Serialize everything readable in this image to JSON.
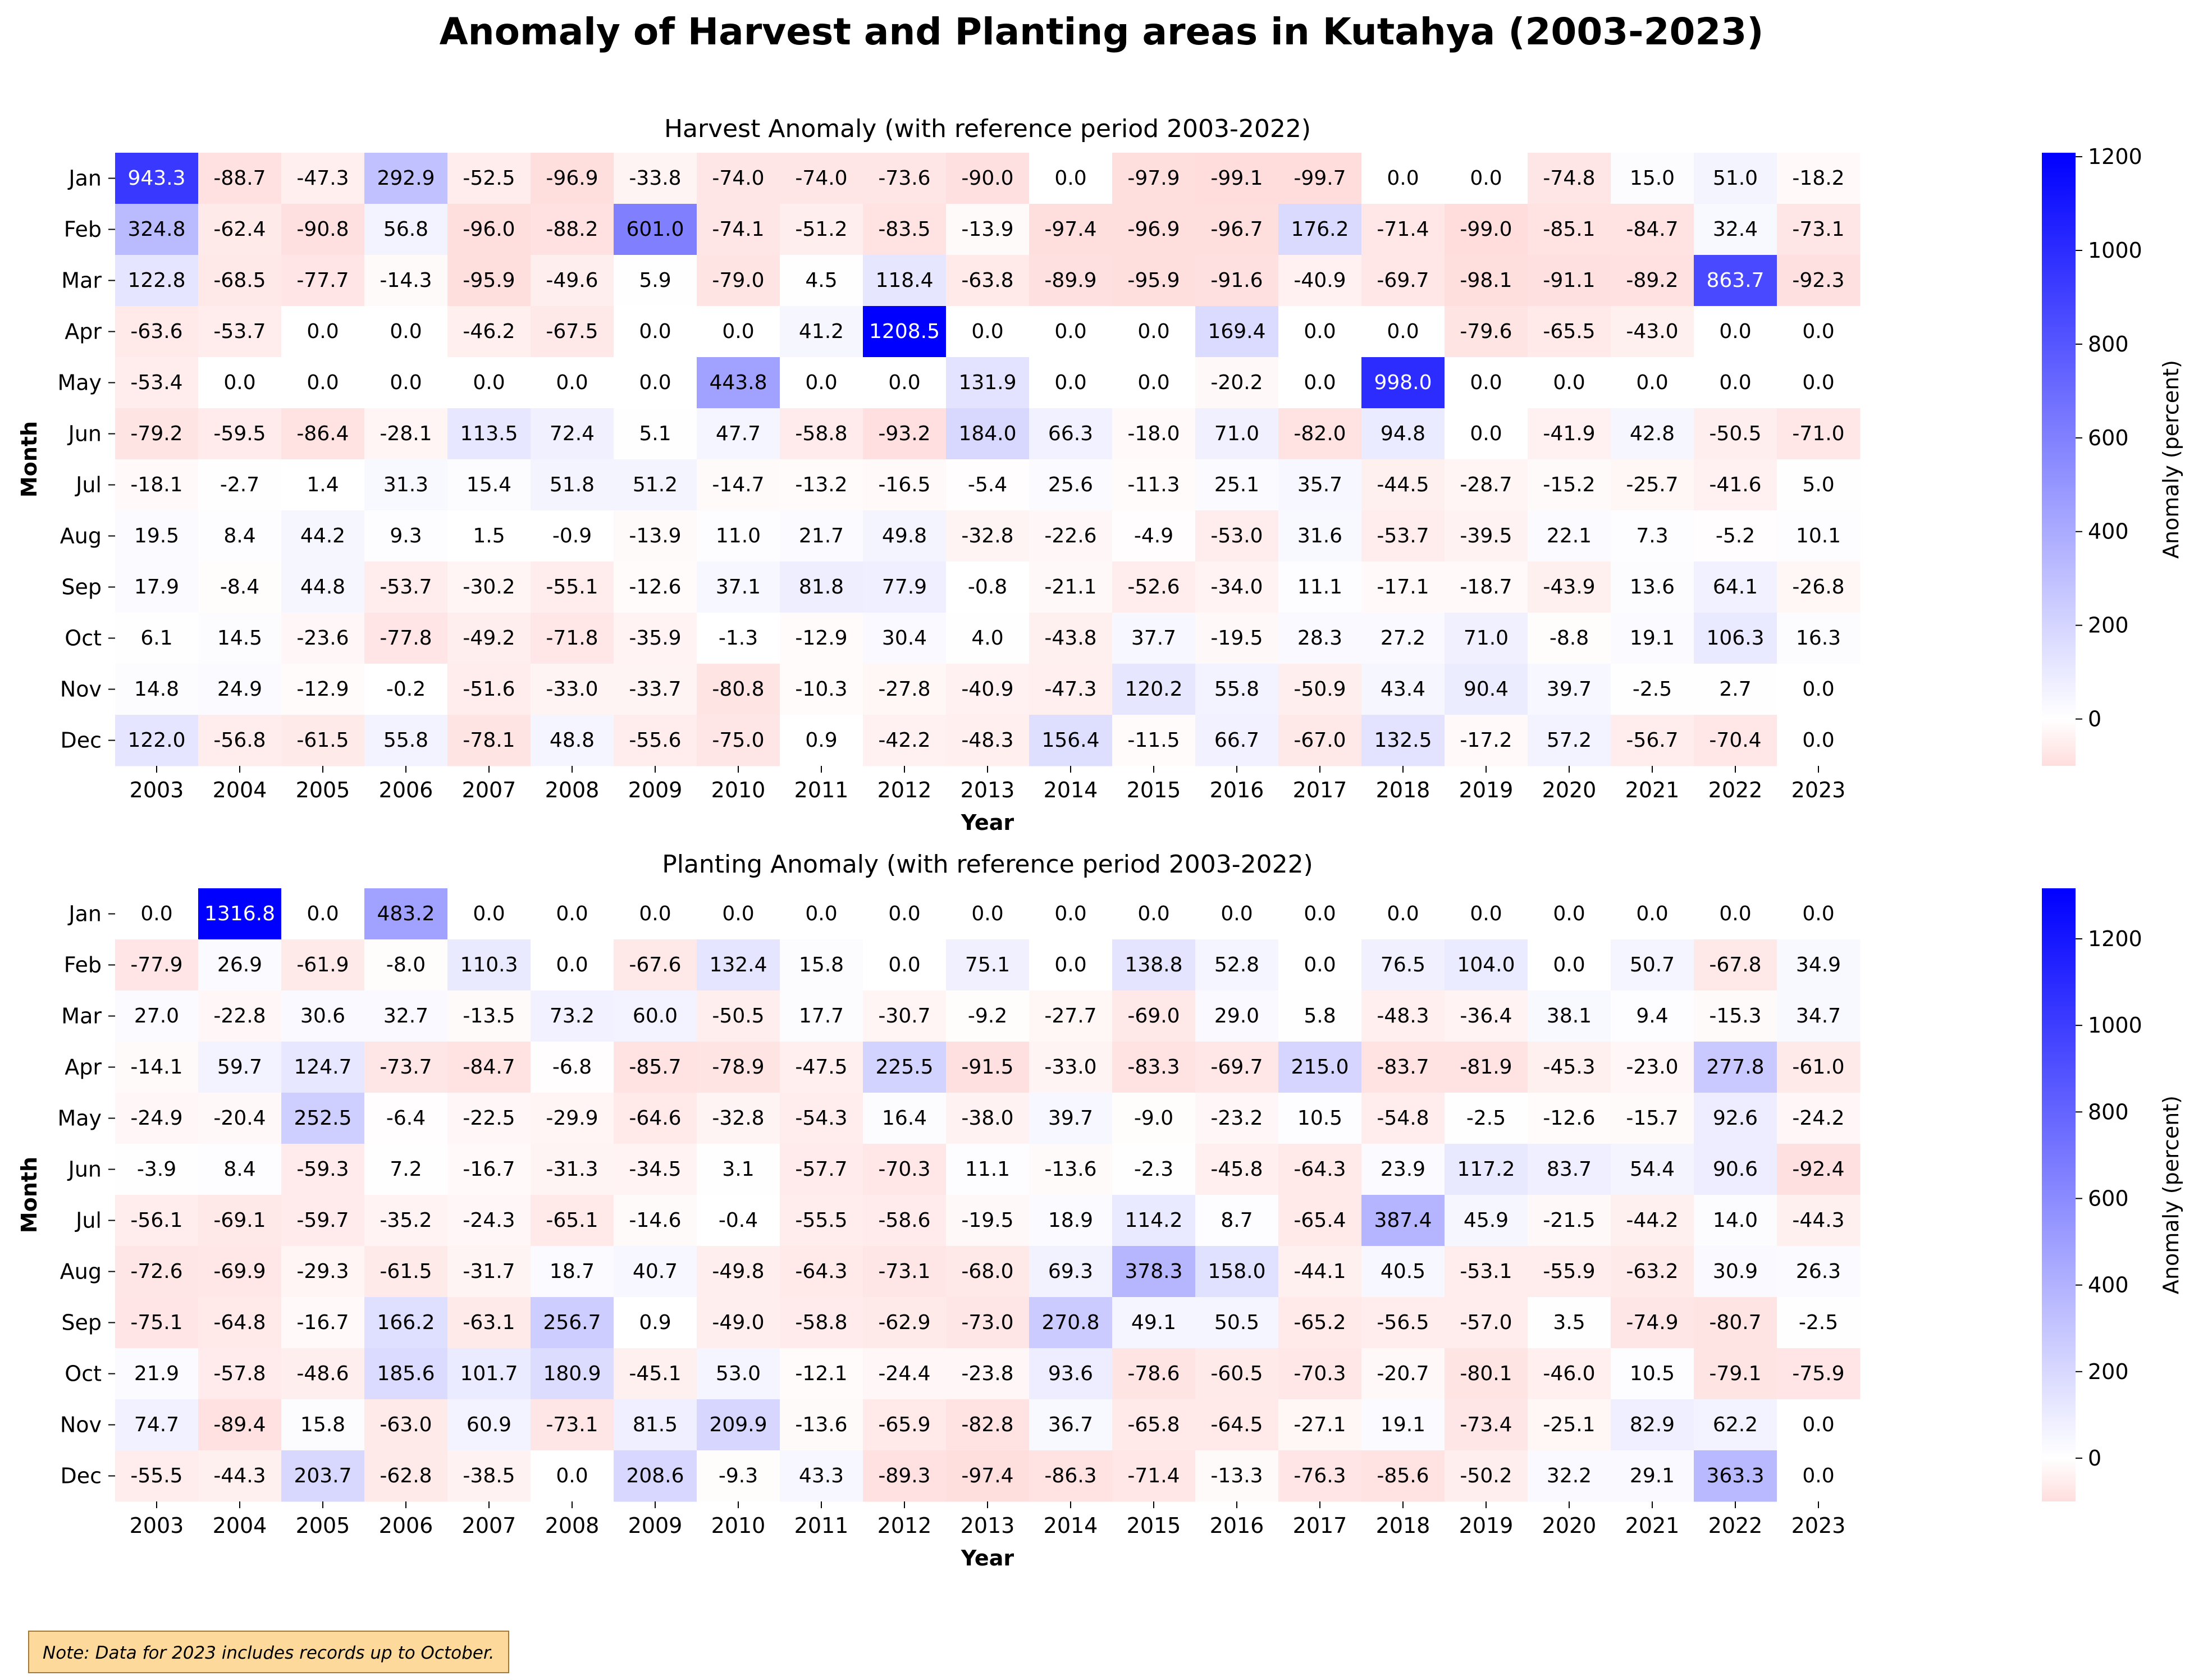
{
  "title": "Anomaly of Harvest and Planting areas in Kutahya (2003-2023)",
  "note": "Note: Data for 2023 includes records up to October.",
  "chart_data": [
    {
      "type": "heatmap",
      "title": "Harvest Anomaly (with reference period 2003-2022)",
      "xlabel": "Year",
      "ylabel": "Month",
      "colorbar_label": "Anomaly (percent)",
      "colorbar_ticks": [
        0,
        200,
        400,
        600,
        800,
        1000,
        1200
      ],
      "vmin": -100,
      "vmax": 1208.5,
      "colormap": {
        "low": "#ffdddd",
        "mid": "#ffffff",
        "high": "#0000ff"
      },
      "x": [
        "2003",
        "2004",
        "2005",
        "2006",
        "2007",
        "2008",
        "2009",
        "2010",
        "2011",
        "2012",
        "2013",
        "2014",
        "2015",
        "2016",
        "2017",
        "2018",
        "2019",
        "2020",
        "2021",
        "2022",
        "2023"
      ],
      "y": [
        "Jan",
        "Feb",
        "Mar",
        "Apr",
        "May",
        "Jun",
        "Jul",
        "Aug",
        "Sep",
        "Oct",
        "Nov",
        "Dec"
      ],
      "values": [
        [
          943.3,
          -88.7,
          -47.3,
          292.9,
          -52.5,
          -96.9,
          -33.8,
          -74.0,
          -74.0,
          -73.6,
          -90.0,
          0.0,
          -97.9,
          -99.1,
          -99.7,
          0.0,
          0.0,
          -74.8,
          15.0,
          51.0,
          -18.2
        ],
        [
          324.8,
          -62.4,
          -90.8,
          56.8,
          -96.0,
          -88.2,
          601.0,
          -74.1,
          -51.2,
          -83.5,
          -13.9,
          -97.4,
          -96.9,
          -96.7,
          176.2,
          -71.4,
          -99.0,
          -85.1,
          -84.7,
          32.4,
          -73.1
        ],
        [
          122.8,
          -68.5,
          -77.7,
          -14.3,
          -95.9,
          -49.6,
          5.9,
          -79.0,
          4.5,
          118.4,
          -63.8,
          -89.9,
          -95.9,
          -91.6,
          -40.9,
          -69.7,
          -98.1,
          -91.1,
          -89.2,
          863.7,
          -92.3
        ],
        [
          -63.6,
          -53.7,
          0.0,
          0.0,
          -46.2,
          -67.5,
          0.0,
          0.0,
          41.2,
          1208.5,
          0.0,
          0.0,
          0.0,
          169.4,
          0.0,
          0.0,
          -79.6,
          -65.5,
          -43.0,
          0.0,
          0.0
        ],
        [
          -53.4,
          0.0,
          0.0,
          0.0,
          0.0,
          0.0,
          0.0,
          443.8,
          0.0,
          0.0,
          131.9,
          0.0,
          0.0,
          -20.2,
          0.0,
          998.0,
          0.0,
          0.0,
          0.0,
          0.0,
          0.0
        ],
        [
          -79.2,
          -59.5,
          -86.4,
          -28.1,
          113.5,
          72.4,
          5.1,
          47.7,
          -58.8,
          -93.2,
          184.0,
          66.3,
          -18.0,
          71.0,
          -82.0,
          94.8,
          0.0,
          -41.9,
          42.8,
          -50.5,
          -71.0
        ],
        [
          -18.1,
          -2.7,
          1.4,
          31.3,
          15.4,
          51.8,
          51.2,
          -14.7,
          -13.2,
          -16.5,
          -5.4,
          25.6,
          -11.3,
          25.1,
          35.7,
          -44.5,
          -28.7,
          -15.2,
          -25.7,
          -41.6,
          5.0
        ],
        [
          19.5,
          8.4,
          44.2,
          9.3,
          1.5,
          -0.9,
          -13.9,
          11.0,
          21.7,
          49.8,
          -32.8,
          -22.6,
          -4.9,
          -53.0,
          31.6,
          -53.7,
          -39.5,
          22.1,
          7.3,
          -5.2,
          10.1
        ],
        [
          17.9,
          -8.4,
          44.8,
          -53.7,
          -30.2,
          -55.1,
          -12.6,
          37.1,
          81.8,
          77.9,
          -0.8,
          -21.1,
          -52.6,
          -34.0,
          11.1,
          -17.1,
          -18.7,
          -43.9,
          13.6,
          64.1,
          -26.8
        ],
        [
          6.1,
          14.5,
          -23.6,
          -77.8,
          -49.2,
          -71.8,
          -35.9,
          -1.3,
          -12.9,
          30.4,
          4.0,
          -43.8,
          37.7,
          -19.5,
          28.3,
          27.2,
          71.0,
          -8.8,
          19.1,
          106.3,
          16.3
        ],
        [
          14.8,
          24.9,
          -12.9,
          -0.2,
          -51.6,
          -33.0,
          -33.7,
          -80.8,
          -10.3,
          -27.8,
          -40.9,
          -47.3,
          120.2,
          55.8,
          -50.9,
          43.4,
          90.4,
          39.7,
          -2.5,
          2.7,
          0.0
        ],
        [
          122.0,
          -56.8,
          -61.5,
          55.8,
          -78.1,
          48.8,
          -55.6,
          -75.0,
          0.9,
          -42.2,
          -48.3,
          156.4,
          -11.5,
          66.7,
          -67.0,
          132.5,
          -17.2,
          57.2,
          -56.7,
          -70.4,
          0.0
        ]
      ]
    },
    {
      "type": "heatmap",
      "title": "Planting Anomaly (with reference period 2003-2022)",
      "xlabel": "Year",
      "ylabel": "Month",
      "colorbar_label": "Anomaly (percent)",
      "colorbar_ticks": [
        0,
        200,
        400,
        600,
        800,
        1000,
        1200
      ],
      "vmin": -100,
      "vmax": 1316.8,
      "colormap": {
        "low": "#ffdddd",
        "mid": "#ffffff",
        "high": "#0000ff"
      },
      "x": [
        "2003",
        "2004",
        "2005",
        "2006",
        "2007",
        "2008",
        "2009",
        "2010",
        "2011",
        "2012",
        "2013",
        "2014",
        "2015",
        "2016",
        "2017",
        "2018",
        "2019",
        "2020",
        "2021",
        "2022",
        "2023"
      ],
      "y": [
        "Jan",
        "Feb",
        "Mar",
        "Apr",
        "May",
        "Jun",
        "Jul",
        "Aug",
        "Sep",
        "Oct",
        "Nov",
        "Dec"
      ],
      "values": [
        [
          0.0,
          1316.8,
          0.0,
          483.2,
          0.0,
          0.0,
          0.0,
          0.0,
          0.0,
          0.0,
          0.0,
          0.0,
          0.0,
          0.0,
          0.0,
          0.0,
          0.0,
          0.0,
          0.0,
          0.0,
          0.0
        ],
        [
          -77.9,
          26.9,
          -61.9,
          -8.0,
          110.3,
          0.0,
          -67.6,
          132.4,
          15.8,
          0.0,
          75.1,
          0.0,
          138.8,
          52.8,
          0.0,
          76.5,
          104.0,
          0.0,
          50.7,
          -67.8,
          34.9
        ],
        [
          27.0,
          -22.8,
          30.6,
          32.7,
          -13.5,
          73.2,
          60.0,
          -50.5,
          17.7,
          -30.7,
          -9.2,
          -27.7,
          -69.0,
          29.0,
          5.8,
          -48.3,
          -36.4,
          38.1,
          9.4,
          -15.3,
          34.7
        ],
        [
          -14.1,
          59.7,
          124.7,
          -73.7,
          -84.7,
          -6.8,
          -85.7,
          -78.9,
          -47.5,
          225.5,
          -91.5,
          -33.0,
          -83.3,
          -69.7,
          215.0,
          -83.7,
          -81.9,
          -45.3,
          -23.0,
          277.8,
          -61.0
        ],
        [
          -24.9,
          -20.4,
          252.5,
          -6.4,
          -22.5,
          -29.9,
          -64.6,
          -32.8,
          -54.3,
          16.4,
          -38.0,
          39.7,
          -9.0,
          -23.2,
          10.5,
          -54.8,
          -2.5,
          -12.6,
          -15.7,
          92.6,
          -24.2
        ],
        [
          -3.9,
          8.4,
          -59.3,
          7.2,
          -16.7,
          -31.3,
          -34.5,
          3.1,
          -57.7,
          -70.3,
          11.1,
          -13.6,
          -2.3,
          -45.8,
          -64.3,
          23.9,
          117.2,
          83.7,
          54.4,
          90.6,
          -92.4
        ],
        [
          -56.1,
          -69.1,
          -59.7,
          -35.2,
          -24.3,
          -65.1,
          -14.6,
          -0.4,
          -55.5,
          -58.6,
          -19.5,
          18.9,
          114.2,
          8.7,
          -65.4,
          387.4,
          45.9,
          -21.5,
          -44.2,
          14.0,
          -44.3
        ],
        [
          -72.6,
          -69.9,
          -29.3,
          -61.5,
          -31.7,
          18.7,
          40.7,
          -49.8,
          -64.3,
          -73.1,
          -68.0,
          69.3,
          378.3,
          158.0,
          -44.1,
          40.5,
          -53.1,
          -55.9,
          -63.2,
          30.9,
          26.3
        ],
        [
          -75.1,
          -64.8,
          -16.7,
          166.2,
          -63.1,
          256.7,
          0.9,
          -49.0,
          -58.8,
          -62.9,
          -73.0,
          270.8,
          49.1,
          50.5,
          -65.2,
          -56.5,
          -57.0,
          3.5,
          -74.9,
          -80.7,
          -2.5
        ],
        [
          21.9,
          -57.8,
          -48.6,
          185.6,
          101.7,
          180.9,
          -45.1,
          53.0,
          -12.1,
          -24.4,
          -23.8,
          93.6,
          -78.6,
          -60.5,
          -70.3,
          -20.7,
          -80.1,
          -46.0,
          10.5,
          -79.1,
          -75.9
        ],
        [
          74.7,
          -89.4,
          15.8,
          -63.0,
          60.9,
          -73.1,
          81.5,
          209.9,
          -13.6,
          -65.9,
          -82.8,
          36.7,
          -65.8,
          -64.5,
          -27.1,
          19.1,
          -73.4,
          -25.1,
          82.9,
          62.2,
          0.0
        ],
        [
          -55.5,
          -44.3,
          203.7,
          -62.8,
          -38.5,
          0.0,
          208.6,
          -9.3,
          43.3,
          -89.3,
          -97.4,
          -86.3,
          -71.4,
          -13.3,
          -76.3,
          -85.6,
          -50.2,
          32.2,
          29.1,
          363.3,
          0.0
        ]
      ]
    }
  ]
}
